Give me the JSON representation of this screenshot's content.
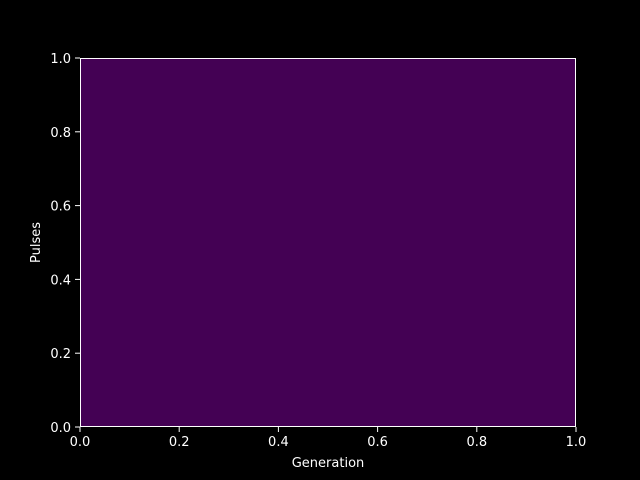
{
  "chart_data": {
    "type": "heatmap",
    "title": "",
    "xlabel": "Generation",
    "ylabel": "Pulses",
    "xlim": [
      0.0,
      1.0
    ],
    "ylim": [
      0.0,
      1.0
    ],
    "x_ticks": [
      "0.0",
      "0.2",
      "0.4",
      "0.6",
      "0.8",
      "1.0"
    ],
    "y_ticks": [
      "0.0",
      "0.2",
      "0.4",
      "0.6",
      "0.8",
      "1.0"
    ],
    "grid": false,
    "fill_color": "#440154",
    "background_color": "#000000",
    "foreground_color": "#ffffff"
  }
}
